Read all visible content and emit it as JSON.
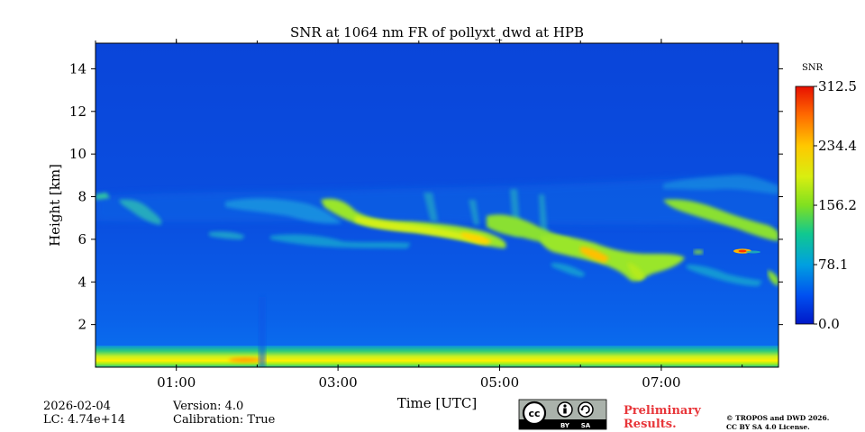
{
  "chart_data": {
    "type": "heatmap",
    "title": "SNR at 1064 nm FR of pollyxt_dwd at HPB",
    "xlabel": "Time [UTC]",
    "ylabel": "Height [km]",
    "xlim": [
      0.0,
      8.45
    ],
    "ylim": [
      0.0,
      15.2
    ],
    "x_tick_values": [
      1,
      3,
      5,
      7
    ],
    "x_tick_labels": [
      "01:00",
      "03:00",
      "05:00",
      "07:00"
    ],
    "x_minor_ticks": [
      0,
      1,
      2,
      3,
      4,
      5,
      6,
      7,
      8
    ],
    "y_ticks": [
      2,
      4,
      6,
      8,
      10,
      12,
      14
    ],
    "y_tick_labels": [
      "2",
      "4",
      "6",
      "8",
      "10",
      "12",
      "14"
    ],
    "colorbar": {
      "label": "SNR",
      "range": [
        0.0,
        312.5
      ],
      "tick_values": [
        0.0,
        78.1,
        156.2,
        234.4,
        312.5
      ],
      "tick_labels": [
        "0.0",
        "78.1",
        "156.2",
        "234.4",
        "312.5"
      ],
      "colormap": "jet"
    },
    "features": [
      {
        "name": "surface layer",
        "t_start": 0.0,
        "t_end": 8.45,
        "h_bottom": 0.1,
        "h_top": 0.9,
        "snr": 170
      },
      {
        "name": "cloud at ~7.7 km",
        "t_start": 0.0,
        "t_end": 0.9,
        "h_center": 7.5,
        "snr": 60
      },
      {
        "name": "cloud at ~6.2 km",
        "t_start": 2.8,
        "t_end": 5.6,
        "h_center": 6.4,
        "snr": 160
      },
      {
        "name": "cloud at ~5 km",
        "t_start": 5.2,
        "t_end": 7.5,
        "h_center": 5.2,
        "snr": 150
      },
      {
        "name": "cloud at ~7.3 km",
        "t_start": 7.0,
        "t_end": 8.45,
        "h_center": 7.0,
        "snr": 120
      },
      {
        "name": "peak",
        "t": 8.0,
        "h": 5.4,
        "snr": 312.5
      }
    ]
  },
  "info": {
    "date": "2026-02-04",
    "lc": "LC: 4.74e+14",
    "version": "Version: 4.0",
    "calibration": "Calibration: True"
  },
  "badge": {
    "cc": "cc",
    "by": "BY",
    "sa": "SA"
  },
  "preliminary": [
    "Preliminary",
    "Results."
  ],
  "copyright": [
    "© TROPOS and DWD 2026.",
    "CC BY SA 4.0 License."
  ],
  "colors": {
    "background_blue": "#0a45d8",
    "surface_yellow": "#ffe600",
    "cloud_green": "#9ae61a",
    "text_red": "#e8363a"
  }
}
